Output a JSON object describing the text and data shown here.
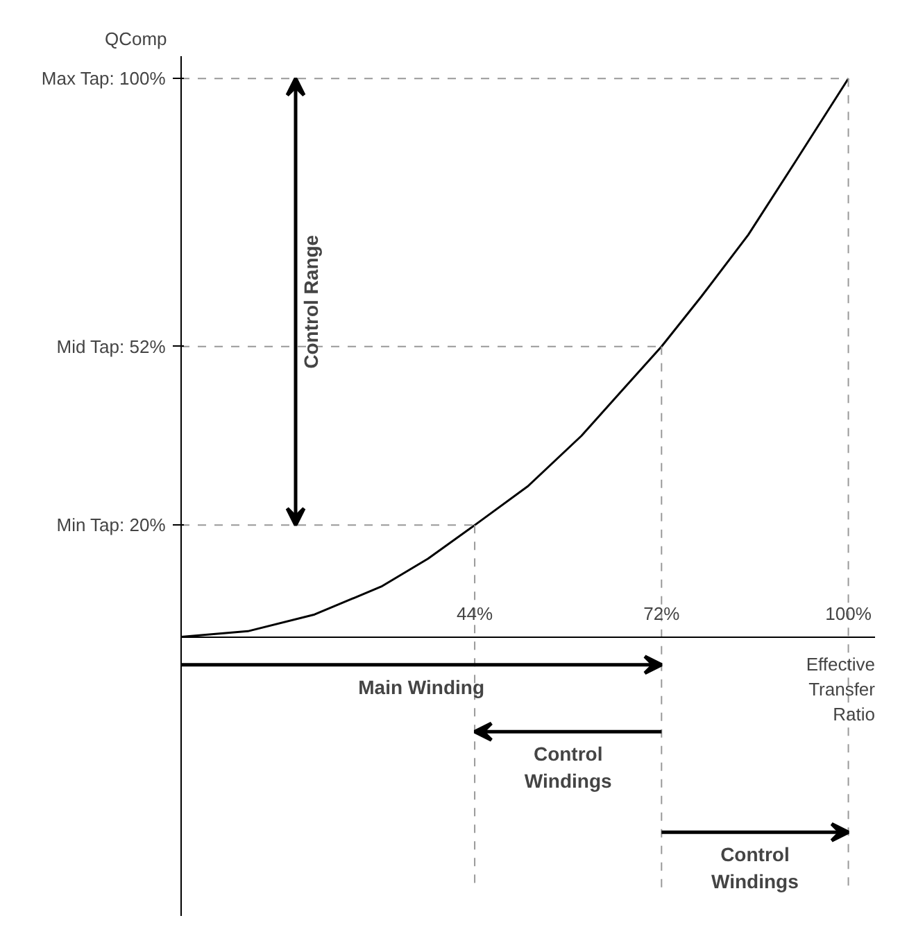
{
  "chart_data": {
    "type": "line",
    "xlabel": "Effective Transfer Ratio",
    "ylabel": "QComp",
    "x": [
      0,
      10,
      20,
      30,
      37,
      44,
      52,
      60,
      66,
      72,
      78,
      85,
      92,
      100
    ],
    "series": [
      {
        "color": "#000000",
        "values": [
          0,
          1,
          4,
          9,
          14,
          20,
          27,
          36,
          44,
          52,
          61,
          72,
          85,
          100
        ]
      }
    ],
    "xlim": [
      0,
      104
    ],
    "ylim": [
      -50,
      104
    ],
    "xticks": [
      {
        "value": 44,
        "label": "44%"
      },
      {
        "value": 72,
        "label": "72%"
      },
      {
        "value": 100,
        "label": "100%"
      }
    ],
    "yticks": [
      {
        "value": 20,
        "label": "Min Tap: 20%"
      },
      {
        "value": 52,
        "label": "Mid Tap: 52%"
      },
      {
        "value": 100,
        "label": "Max Tap: 100%"
      }
    ],
    "ref_lines": [
      {
        "axis": "y",
        "value": 20,
        "color": "#999999",
        "line_style": "dashed"
      },
      {
        "axis": "y",
        "value": 52,
        "color": "#999999",
        "line_style": "dashed"
      },
      {
        "axis": "y",
        "value": 100,
        "color": "#999999",
        "line_style": "dashed"
      },
      {
        "axis": "x",
        "value": 44,
        "color": "#999999",
        "line_style": "dashed"
      },
      {
        "axis": "x",
        "value": 72,
        "color": "#999999",
        "line_style": "dashed"
      },
      {
        "axis": "x",
        "value": 100,
        "color": "#999999",
        "line_style": "dashed"
      }
    ],
    "annotations": [
      "Control Range",
      "Main Winding",
      "Control Windings",
      "Control Windings"
    ],
    "grid": false,
    "marker": "none",
    "line_style": "solid"
  }
}
